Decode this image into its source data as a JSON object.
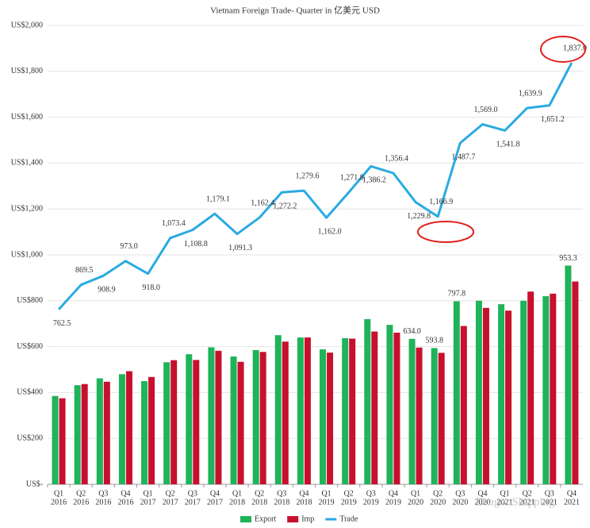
{
  "chart_data": {
    "type": "bar-line",
    "title": "Vietnam Foreign Trade- Quarter in 亿美元 USD",
    "categories": [
      [
        "Q1",
        "2016"
      ],
      [
        "Q2",
        "2016"
      ],
      [
        "Q3",
        "2016"
      ],
      [
        "Q4",
        "2016"
      ],
      [
        "Q1",
        "2017"
      ],
      [
        "Q2",
        "2017"
      ],
      [
        "Q3",
        "2017"
      ],
      [
        "Q4",
        "2017"
      ],
      [
        "Q1",
        "2018"
      ],
      [
        "Q2",
        "2018"
      ],
      [
        "Q3",
        "2018"
      ],
      [
        "Q4",
        "2018"
      ],
      [
        "Q1",
        "2019"
      ],
      [
        "Q2",
        "2019"
      ],
      [
        "Q3",
        "2019"
      ],
      [
        "Q4",
        "2019"
      ],
      [
        "Q1",
        "2020"
      ],
      [
        "Q2",
        "2020"
      ],
      [
        "Q3",
        "2020"
      ],
      [
        "Q4",
        "2020"
      ],
      [
        "Q1",
        "2021"
      ],
      [
        "Q2",
        "2021"
      ],
      [
        "Q3",
        "2021"
      ],
      [
        "Q4",
        "2021"
      ]
    ],
    "series": [
      {
        "name": "Export",
        "type": "bar",
        "color": "#1fb35a",
        "values": [
          385,
          432,
          462,
          480,
          450,
          532,
          567,
          597,
          557,
          585,
          650,
          640,
          588,
          637,
          720,
          695,
          634,
          593.8,
          797.8,
          800,
          785,
          800,
          820,
          953.3
        ],
        "value_labels": [
          null,
          null,
          null,
          null,
          null,
          null,
          null,
          null,
          null,
          null,
          null,
          null,
          null,
          null,
          null,
          null,
          "634.0",
          "593.8",
          "797.8",
          null,
          null,
          null,
          null,
          "953.3"
        ]
      },
      {
        "name": "Imp",
        "type": "bar",
        "color": "#c8102e",
        "values": [
          375,
          437,
          447,
          493,
          468,
          541,
          542,
          582,
          534,
          577,
          622,
          640,
          574,
          635,
          666,
          661,
          596,
          573,
          690,
          769,
          757,
          840,
          831,
          884
        ]
      },
      {
        "name": "Trade",
        "type": "line",
        "color": "#2aaae2",
        "values": [
          762.5,
          869.5,
          908.9,
          973.0,
          918.0,
          1073.4,
          1108.8,
          1179.1,
          1091.3,
          1162.4,
          1272.2,
          1279.6,
          1162.0,
          1271.8,
          1386.2,
          1356.4,
          1229.8,
          1166.9,
          1487.7,
          1569.0,
          1541.8,
          1639.9,
          1651.2,
          1837.0
        ],
        "value_labels": [
          "762.5",
          "869.5",
          "908.9",
          "973.0",
          "918.0",
          "1,073.4",
          "1,108.8",
          "1,179.1",
          "1,091.3",
          "1,162.4",
          "1,272.2",
          "1,279.6",
          "1,162.0",
          "1,271.8",
          "1,386.2",
          "1,356.4",
          "1,229.8",
          "1,166.9",
          "1,487.7",
          "1,569.0",
          "1,541.8",
          "1,639.9",
          "1,651.2",
          "1,837.0"
        ]
      }
    ],
    "ylim": [
      0,
      2000
    ],
    "yticks": [
      {
        "value": 0,
        "label": "US$-"
      },
      {
        "value": 200,
        "label": "US$200"
      },
      {
        "value": 400,
        "label": "US$400"
      },
      {
        "value": 600,
        "label": "US$600"
      },
      {
        "value": 800,
        "label": "US$800"
      },
      {
        "value": 1000,
        "label": "US$1,000"
      },
      {
        "value": 1200,
        "label": "US$1,200"
      },
      {
        "value": 1400,
        "label": "US$1,400"
      },
      {
        "value": 1600,
        "label": "US$1,600"
      },
      {
        "value": 1800,
        "label": "US$1,800"
      },
      {
        "value": 2000,
        "label": "US$2,000"
      }
    ],
    "grid": true,
    "legend": "bottom",
    "watermark": "DragonShipping"
  }
}
